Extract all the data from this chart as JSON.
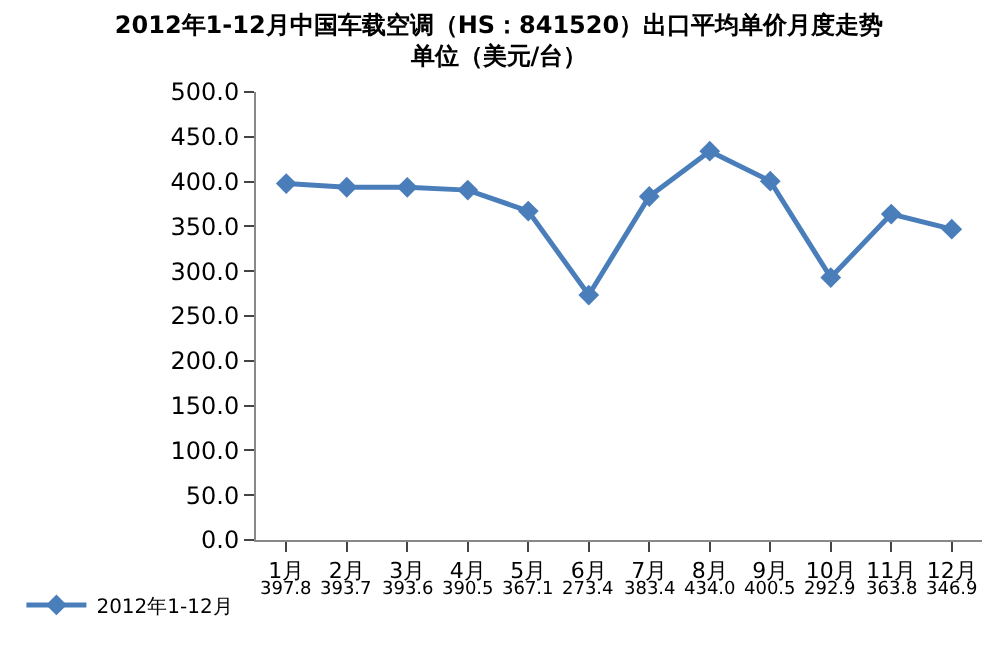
{
  "chart_data": {
    "type": "line",
    "title": "2012年1-12月中国车载空调（HS：841520）出口平均单价月度走势",
    "subtitle": "单位（美元/台）",
    "categories": [
      "1月",
      "2月",
      "3月",
      "4月",
      "5月",
      "6月",
      "7月",
      "8月",
      "9月",
      "10月",
      "11月",
      "12月"
    ],
    "series": [
      {
        "name": "2012年1-12月",
        "color": "#4a7ebb",
        "values": [
          397.8,
          393.7,
          393.6,
          390.5,
          367.1,
          273.4,
          383.4,
          434.0,
          400.5,
          292.9,
          363.8,
          346.9
        ]
      }
    ],
    "ylim": [
      0,
      500
    ],
    "yticks": [
      {
        "value": 0,
        "label": "0.0"
      },
      {
        "value": 50,
        "label": "50.0"
      },
      {
        "value": 100,
        "label": "100.0"
      },
      {
        "value": 150,
        "label": "150.0"
      },
      {
        "value": 200,
        "label": "200.0"
      },
      {
        "value": 250,
        "label": "250.0"
      },
      {
        "value": 300,
        "label": "300.0"
      },
      {
        "value": 350,
        "label": "350.0"
      },
      {
        "value": 400,
        "label": "400.0"
      },
      {
        "value": 450,
        "label": "450.0"
      },
      {
        "value": 500,
        "label": "500.0"
      }
    ],
    "legend": "bottom left",
    "marker": "diamond",
    "line_style": "solid",
    "value_labels": [
      "397.8",
      "393.7",
      "393.6",
      "390.5",
      "367.1",
      "273.4",
      "383.4",
      "434.0",
      "400.5",
      "292.9",
      "363.8",
      "346.9"
    ]
  }
}
